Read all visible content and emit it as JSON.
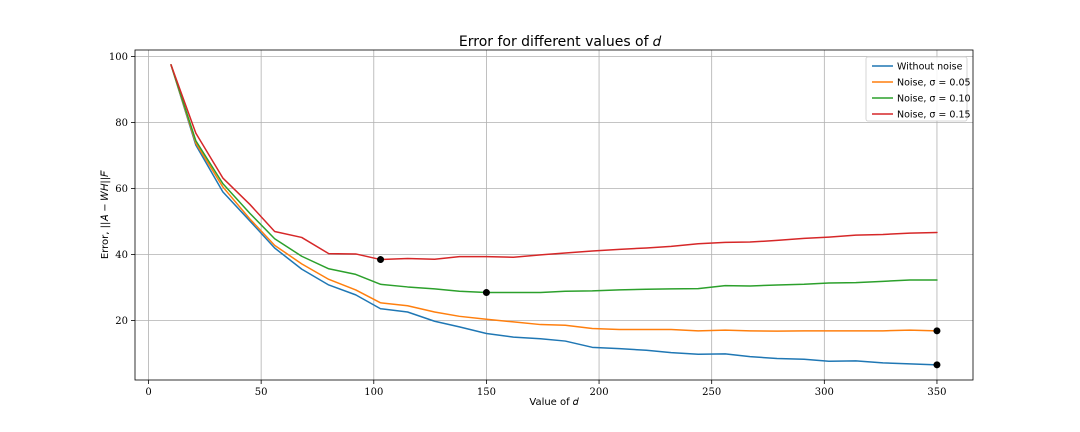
{
  "chart_data": {
    "type": "line",
    "title": "Error for different values of 𝑑",
    "xlabel": "Value of 𝑑",
    "ylabel": "Error, ||𝐴 − 𝑊𝐻||𝐹",
    "xlim": [
      -6,
      366
    ],
    "ylim": [
      2,
      102
    ],
    "xticks": [
      0,
      50,
      100,
      150,
      200,
      250,
      300,
      350
    ],
    "yticks": [
      20,
      40,
      60,
      80,
      100
    ],
    "grid": true,
    "legend_position": "top-right",
    "x": [
      10,
      21,
      33,
      45,
      56,
      68,
      80,
      92,
      103,
      115,
      127,
      138,
      150,
      162,
      174,
      185,
      197,
      209,
      221,
      232,
      244,
      256,
      267,
      279,
      291,
      302,
      314,
      326,
      338,
      350
    ],
    "series": [
      {
        "name": "Without noise",
        "color": "#1f77b4",
        "values": [
          97.5,
          73.2,
          59.0,
          50.2,
          42.0,
          35.6,
          30.8,
          27.8,
          23.6,
          22.6,
          19.8,
          18.1,
          16.1,
          15.0,
          14.5,
          13.8,
          11.9,
          11.5,
          11.0,
          10.3,
          9.8,
          9.9,
          9.1,
          8.5,
          8.3,
          7.7,
          7.8,
          7.2,
          6.9,
          6.6
        ]
      },
      {
        "name": "Noise, σ = 0.05",
        "color": "#ff7f0e",
        "values": [
          97.5,
          73.8,
          60.5,
          50.8,
          42.8,
          37.2,
          32.5,
          29.3,
          25.4,
          24.5,
          22.6,
          21.3,
          20.4,
          19.6,
          18.8,
          18.6,
          17.6,
          17.3,
          17.3,
          17.3,
          16.9,
          17.1,
          16.9,
          16.8,
          16.9,
          16.9,
          16.9,
          16.9,
          17.1,
          16.9
        ]
      },
      {
        "name": "Noise, σ = 0.10",
        "color": "#2ca02c",
        "values": [
          97.5,
          74.5,
          61.5,
          52.5,
          44.8,
          39.5,
          35.7,
          34.0,
          31.0,
          30.2,
          29.6,
          28.9,
          28.5,
          28.5,
          28.5,
          28.9,
          29.0,
          29.3,
          29.5,
          29.6,
          29.7,
          30.6,
          30.5,
          30.8,
          31.0,
          31.4,
          31.5,
          31.9,
          32.3,
          32.3
        ]
      },
      {
        "name": "Noise, σ = 0.15",
        "color": "#d62728",
        "values": [
          97.5,
          76.8,
          63.2,
          55.2,
          47.0,
          45.2,
          40.3,
          40.2,
          38.5,
          38.8,
          38.6,
          39.4,
          39.4,
          39.2,
          39.9,
          40.5,
          41.1,
          41.6,
          42.0,
          42.5,
          43.3,
          43.7,
          43.8,
          44.3,
          44.9,
          45.3,
          45.9,
          46.1,
          46.5,
          46.7
        ]
      }
    ],
    "highlight_points": [
      {
        "x": 103,
        "y": 38.5
      },
      {
        "x": 150,
        "y": 28.5
      },
      {
        "x": 350,
        "y": 16.9
      },
      {
        "x": 350,
        "y": 6.6
      }
    ]
  }
}
